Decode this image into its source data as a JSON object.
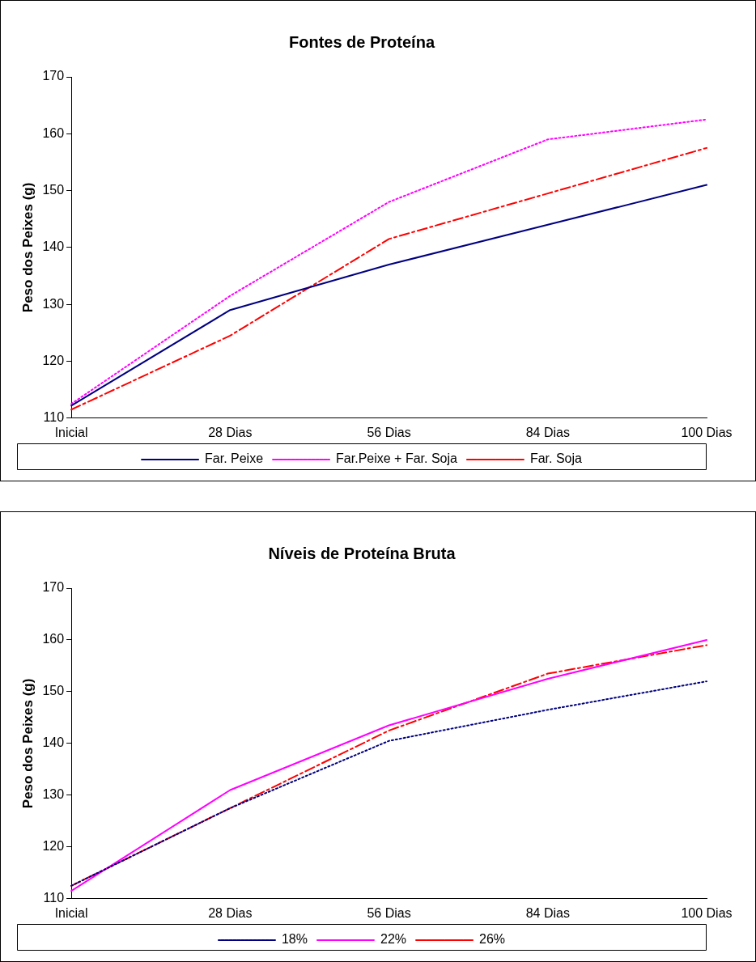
{
  "chart_data": [
    {
      "type": "line",
      "title": "Fontes de Proteína",
      "ylabel": "Peso dos Peixes (g)",
      "categories": [
        "Inicial",
        "28 Dias",
        "56 Dias",
        "84 Dias",
        "100 Dias"
      ],
      "ylim": [
        110,
        170
      ],
      "yticks": [
        110,
        120,
        130,
        140,
        150,
        160,
        170
      ],
      "grid": false,
      "legend": "bottom",
      "marker": "none",
      "series": [
        {
          "name": "Far. Peixe",
          "color": "#000080",
          "line_style": "solid",
          "values": [
            112.2,
            129,
            137,
            144,
            151
          ]
        },
        {
          "name": "Far.Peixe + Far. Soja",
          "color": "#ff00ff",
          "line_style": "dotted",
          "values": [
            112.5,
            131.5,
            148,
            159,
            162.5
          ]
        },
        {
          "name": "Far. Soja",
          "color": "#ff0000",
          "line_style": "dashed",
          "values": [
            111.5,
            124.5,
            141.5,
            149.5,
            157.5
          ]
        }
      ]
    },
    {
      "type": "line",
      "title": "Níveis de Proteína Bruta",
      "ylabel": "Peso dos Peixes (g)",
      "categories": [
        "Inicial",
        "28 Dias",
        "56 Dias",
        "84 Dias",
        "100 Dias"
      ],
      "ylim": [
        110,
        170
      ],
      "yticks": [
        110,
        120,
        130,
        140,
        150,
        160,
        170
      ],
      "grid": false,
      "legend": "bottom",
      "marker": "none",
      "series": [
        {
          "name": "18%",
          "color": "#000080",
          "line_style": "dotted",
          "values": [
            112.5,
            127.5,
            140.5,
            146.5,
            152
          ]
        },
        {
          "name": "22%",
          "color": "#ff00ff",
          "line_style": "solid",
          "values": [
            111.5,
            131,
            143.5,
            152.5,
            160
          ]
        },
        {
          "name": "26%",
          "color": "#ff0000",
          "line_style": "dashed",
          "values": [
            112.5,
            127.5,
            142.5,
            153.5,
            159
          ]
        }
      ]
    }
  ]
}
